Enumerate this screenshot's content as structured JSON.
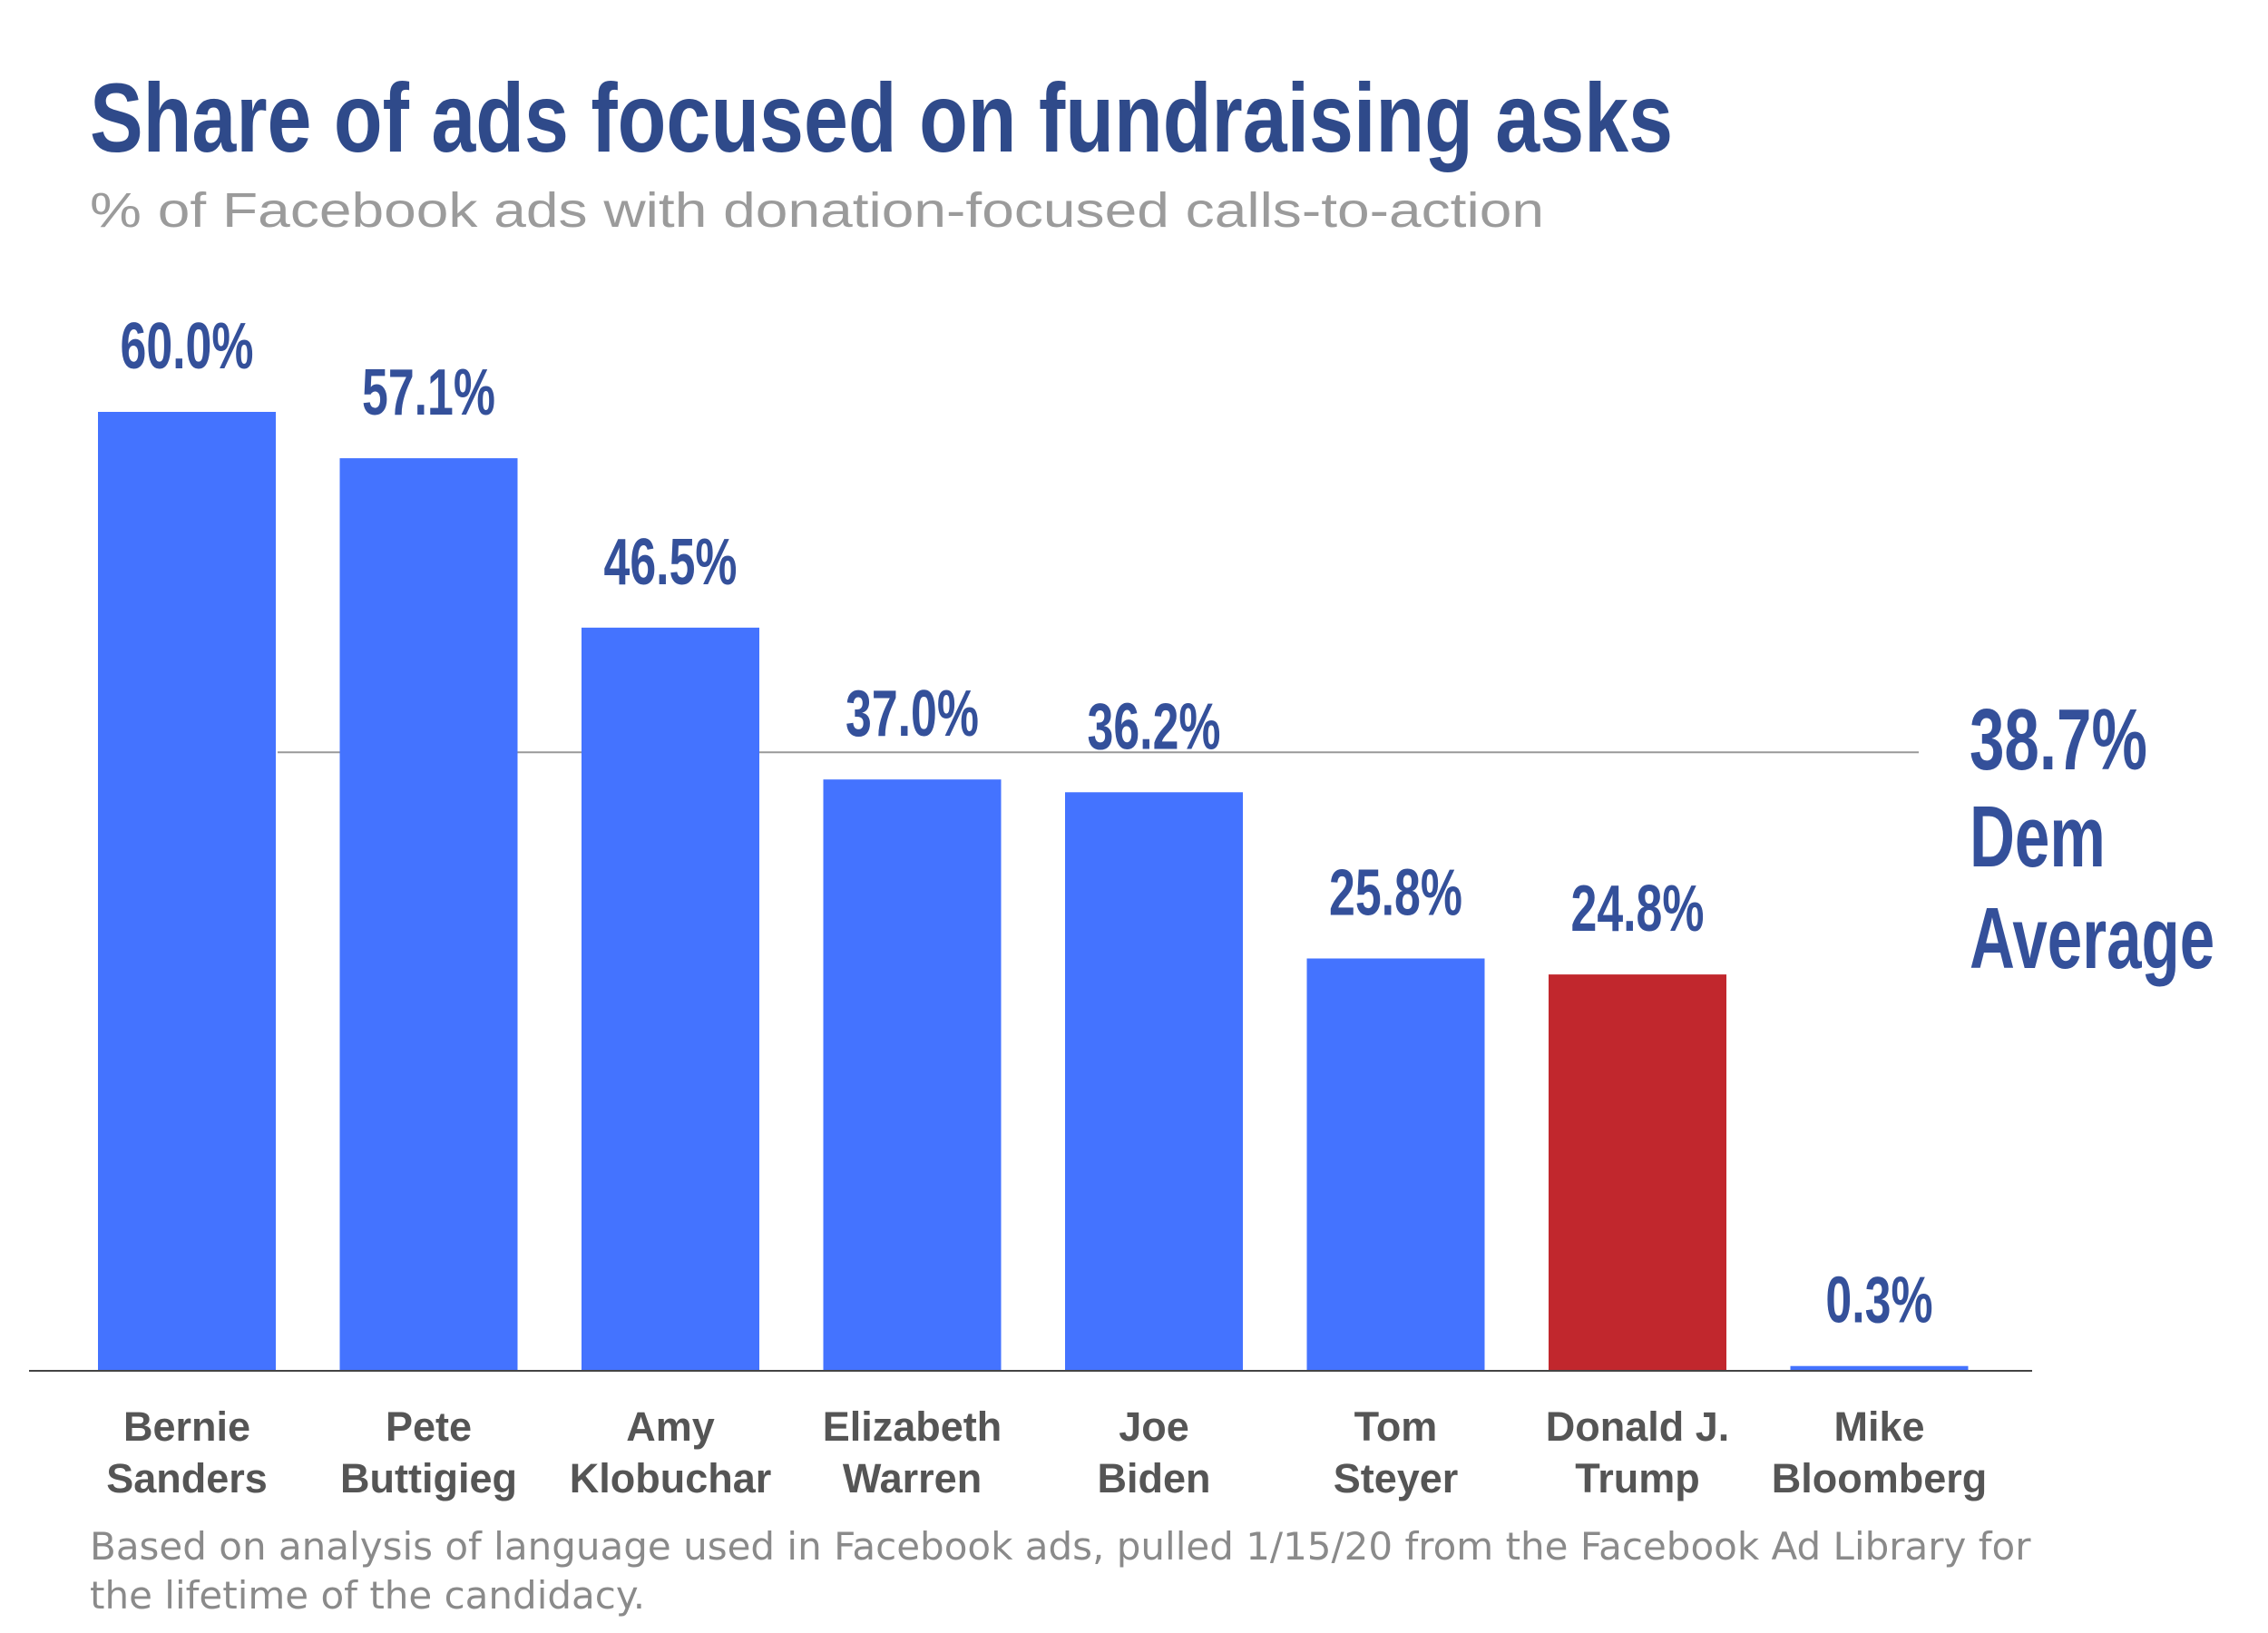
{
  "chart_data": {
    "type": "bar",
    "title": "Share of ads focused on fundraising asks",
    "subtitle": "% of Facebook ads with donation-focused calls-to-action",
    "categories": [
      "Bernie Sanders",
      "Pete Buttigieg",
      "Amy Klobuchar",
      "Elizabeth Warren",
      "Joe Biden",
      "Tom Steyer",
      "Donald J. Trump",
      "Mike Bloomberg"
    ],
    "values": [
      60.0,
      57.1,
      46.5,
      37.0,
      36.2,
      25.8,
      24.8,
      0.3
    ],
    "value_labels": [
      "60.0%",
      "57.1%",
      "46.5%",
      "37.0%",
      "36.2%",
      "25.8%",
      "24.8%",
      "0.3%"
    ],
    "colors": [
      "#4473ff",
      "#4473ff",
      "#4473ff",
      "#4473ff",
      "#4473ff",
      "#4473ff",
      "#c1272d",
      "#4473ff"
    ],
    "ylim": [
      0,
      60
    ],
    "reference_line": {
      "value": 38.7,
      "label": "38.7%",
      "text": [
        "Dem",
        "Average"
      ]
    },
    "footnote": "Based on analysis of language used in Facebook ads, pulled 1/15/20 from the Facebook Ad Library for the lifetime of the candidacy."
  }
}
